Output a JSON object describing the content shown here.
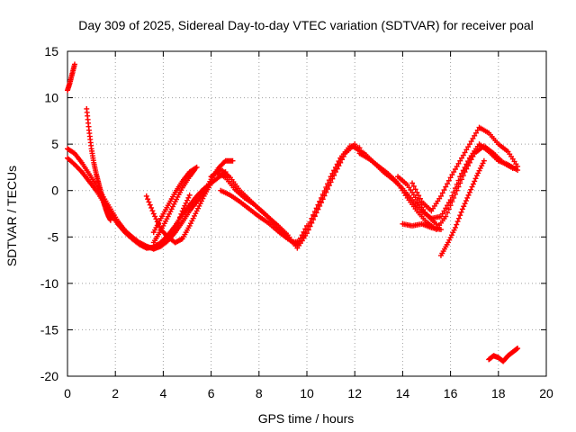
{
  "chart_data": {
    "type": "scatter",
    "title": "Day 309 of 2025, Sidereal Day-to-day VTEC variation (SDTVAR) for receiver poal",
    "xlabel": "GPS time / hours",
    "ylabel": "SDTVAR / TECUs",
    "xlim": [
      0,
      20
    ],
    "ylim": [
      -20,
      15
    ],
    "x_ticks": [
      0,
      2,
      4,
      6,
      8,
      10,
      12,
      14,
      16,
      18,
      20
    ],
    "y_ticks": [
      -20,
      -15,
      -10,
      -5,
      0,
      5,
      10,
      15
    ],
    "grid": true,
    "marker": "plus",
    "series_color": "#ff0000",
    "series": [
      {
        "name": "main-a",
        "x": [
          0.0,
          0.3,
          0.6,
          0.9,
          1.2,
          1.5,
          1.8,
          2.1,
          2.4,
          2.7,
          3.0,
          3.3,
          3.6,
          3.9,
          4.2,
          4.5,
          4.8,
          5.1,
          5.4,
          5.7,
          6.0,
          6.3,
          6.6
        ],
        "y": [
          3.5,
          2.8,
          2.0,
          1.0,
          0.0,
          -1.2,
          -2.5,
          -3.6,
          -4.5,
          -5.2,
          -5.8,
          -6.2,
          -6.1,
          -5.6,
          -4.8,
          -3.8,
          -2.6,
          -1.6,
          -0.6,
          0.2,
          0.8,
          1.4,
          2.0
        ]
      },
      {
        "name": "main-b",
        "x": [
          0.0,
          0.3,
          0.6,
          0.9,
          1.2,
          1.5,
          1.8,
          2.1,
          2.4,
          2.7,
          3.0,
          3.3,
          3.6,
          3.9,
          4.2,
          4.5,
          4.8,
          5.1,
          5.4,
          5.7,
          6.0,
          6.3,
          6.6,
          6.9
        ],
        "y": [
          4.5,
          4.0,
          3.0,
          1.8,
          0.6,
          -0.7,
          -2.0,
          -3.3,
          -4.3,
          -5.0,
          -5.6,
          -6.0,
          -6.3,
          -6.0,
          -5.4,
          -4.5,
          -3.4,
          -2.2,
          -1.2,
          -0.2,
          1.2,
          2.4,
          3.2,
          3.2
        ]
      },
      {
        "name": "tail-1",
        "x": [
          0.8,
          0.9,
          1.0,
          1.1,
          1.2,
          1.3,
          1.4,
          1.5,
          1.6,
          1.7,
          1.8
        ],
        "y": [
          8.8,
          6.5,
          4.5,
          3.0,
          1.8,
          0.8,
          -0.2,
          -1.2,
          -2.0,
          -2.7,
          -3.2
        ]
      },
      {
        "name": "spike",
        "x": [
          0.0,
          0.1,
          0.2,
          0.3
        ],
        "y": [
          10.8,
          11.6,
          12.6,
          13.6
        ]
      },
      {
        "name": "dip-1",
        "x": [
          3.3,
          3.6,
          3.9,
          4.2,
          4.5,
          4.8,
          5.1
        ],
        "y": [
          -0.6,
          -2.5,
          -4.2,
          -5.0,
          -4.2,
          -2.2,
          -0.5
        ]
      },
      {
        "name": "dip-2",
        "x": [
          3.6,
          3.9,
          4.2,
          4.5,
          4.8,
          5.1,
          5.3
        ],
        "y": [
          -5.6,
          -4.3,
          -2.8,
          -1.2,
          0.3,
          1.5,
          2.2
        ]
      },
      {
        "name": "dip-3",
        "x": [
          3.6,
          3.9,
          4.2,
          4.5,
          4.8,
          5.1,
          5.4
        ],
        "y": [
          -4.5,
          -3.0,
          -1.6,
          -0.2,
          1.0,
          2.0,
          2.5
        ]
      },
      {
        "name": "dip-4",
        "x": [
          4.2,
          4.5,
          4.8,
          5.1,
          5.4,
          5.7,
          6.0
        ],
        "y": [
          -5.0,
          -5.6,
          -5.2,
          -3.8,
          -2.2,
          -0.6,
          0.8
        ]
      },
      {
        "name": "mid-a",
        "x": [
          6.0,
          6.4,
          6.8,
          7.2,
          7.6,
          8.0,
          8.4,
          8.8,
          9.2,
          9.6,
          10.0,
          10.4,
          10.8,
          11.2,
          11.6,
          12.0
        ],
        "y": [
          1.5,
          2.3,
          1.4,
          0.0,
          -1.0,
          -2.0,
          -2.9,
          -3.8,
          -4.8,
          -6.2,
          -4.6,
          -2.4,
          -0.2,
          2.0,
          4.0,
          5.0
        ]
      },
      {
        "name": "mid-b",
        "x": [
          6.2,
          6.6,
          7.0,
          7.4,
          7.8,
          8.2,
          8.6,
          9.0,
          9.4,
          9.8,
          10.2,
          10.6,
          11.0,
          11.4,
          11.8,
          12.2
        ],
        "y": [
          2.0,
          1.4,
          0.1,
          -0.8,
          -1.5,
          -2.4,
          -3.4,
          -4.6,
          -5.6,
          -5.4,
          -3.0,
          -0.8,
          1.5,
          3.5,
          4.8,
          4.6
        ]
      },
      {
        "name": "mid-c",
        "x": [
          6.4,
          6.8,
          7.2,
          7.6,
          8.0,
          8.4,
          8.8,
          9.2,
          9.6,
          10.0
        ],
        "y": [
          0.0,
          -0.5,
          -1.2,
          -2.0,
          -2.8,
          -3.5,
          -4.4,
          -5.2,
          -5.8,
          -3.8
        ]
      },
      {
        "name": "late-a",
        "x": [
          12.0,
          12.4,
          12.8,
          13.2,
          13.6,
          14.0,
          14.4,
          14.8,
          15.2,
          15.6,
          16.0,
          16.4,
          16.8,
          17.2,
          17.6,
          18.0,
          18.4,
          18.8
        ],
        "y": [
          4.6,
          4.0,
          3.0,
          2.0,
          1.2,
          0.2,
          -1.0,
          -2.2,
          -3.0,
          -2.8,
          -1.0,
          1.5,
          3.5,
          5.0,
          4.2,
          3.2,
          2.8,
          2.2
        ]
      },
      {
        "name": "late-b",
        "x": [
          12.2,
          12.6,
          13.0,
          13.4,
          13.8,
          14.2,
          14.6,
          15.0,
          15.4,
          15.8,
          16.2,
          16.6,
          17.0,
          17.4,
          17.8,
          18.2,
          18.6
        ],
        "y": [
          4.0,
          3.4,
          2.6,
          1.8,
          0.8,
          -0.8,
          -2.2,
          -3.4,
          -4.2,
          -2.8,
          -0.4,
          2.0,
          4.0,
          4.8,
          4.0,
          3.0,
          2.4
        ]
      },
      {
        "name": "late-c",
        "x": [
          14.4,
          14.8,
          15.2,
          15.6,
          16.0,
          16.4,
          16.8,
          17.2,
          17.6,
          18.0,
          18.4,
          18.8
        ],
        "y": [
          0.8,
          -1.2,
          -2.2,
          -0.6,
          1.4,
          3.2,
          5.0,
          6.8,
          6.2,
          5.0,
          4.2,
          2.6
        ]
      },
      {
        "name": "late-d",
        "x": [
          13.8,
          14.2,
          14.6,
          15.0,
          15.4
        ],
        "y": [
          1.5,
          0.6,
          -1.0,
          -2.6,
          -3.6
        ]
      },
      {
        "name": "late-e",
        "x": [
          14.0,
          14.4,
          14.8,
          15.2,
          15.6
        ],
        "y": [
          -3.6,
          -3.8,
          -3.6,
          -4.0,
          -4.2
        ]
      },
      {
        "name": "rise",
        "x": [
          15.6,
          15.9,
          16.2,
          16.5,
          16.8,
          17.1,
          17.4
        ],
        "y": [
          -7.0,
          -5.6,
          -4.0,
          -2.0,
          -0.2,
          1.6,
          3.2
        ]
      },
      {
        "name": "outlier",
        "x": [
          17.6,
          17.8,
          18.0,
          18.2,
          18.4,
          18.6,
          18.8
        ],
        "y": [
          -18.2,
          -17.8,
          -18.0,
          -18.4,
          -17.8,
          -17.4,
          -17.0
        ]
      }
    ]
  }
}
